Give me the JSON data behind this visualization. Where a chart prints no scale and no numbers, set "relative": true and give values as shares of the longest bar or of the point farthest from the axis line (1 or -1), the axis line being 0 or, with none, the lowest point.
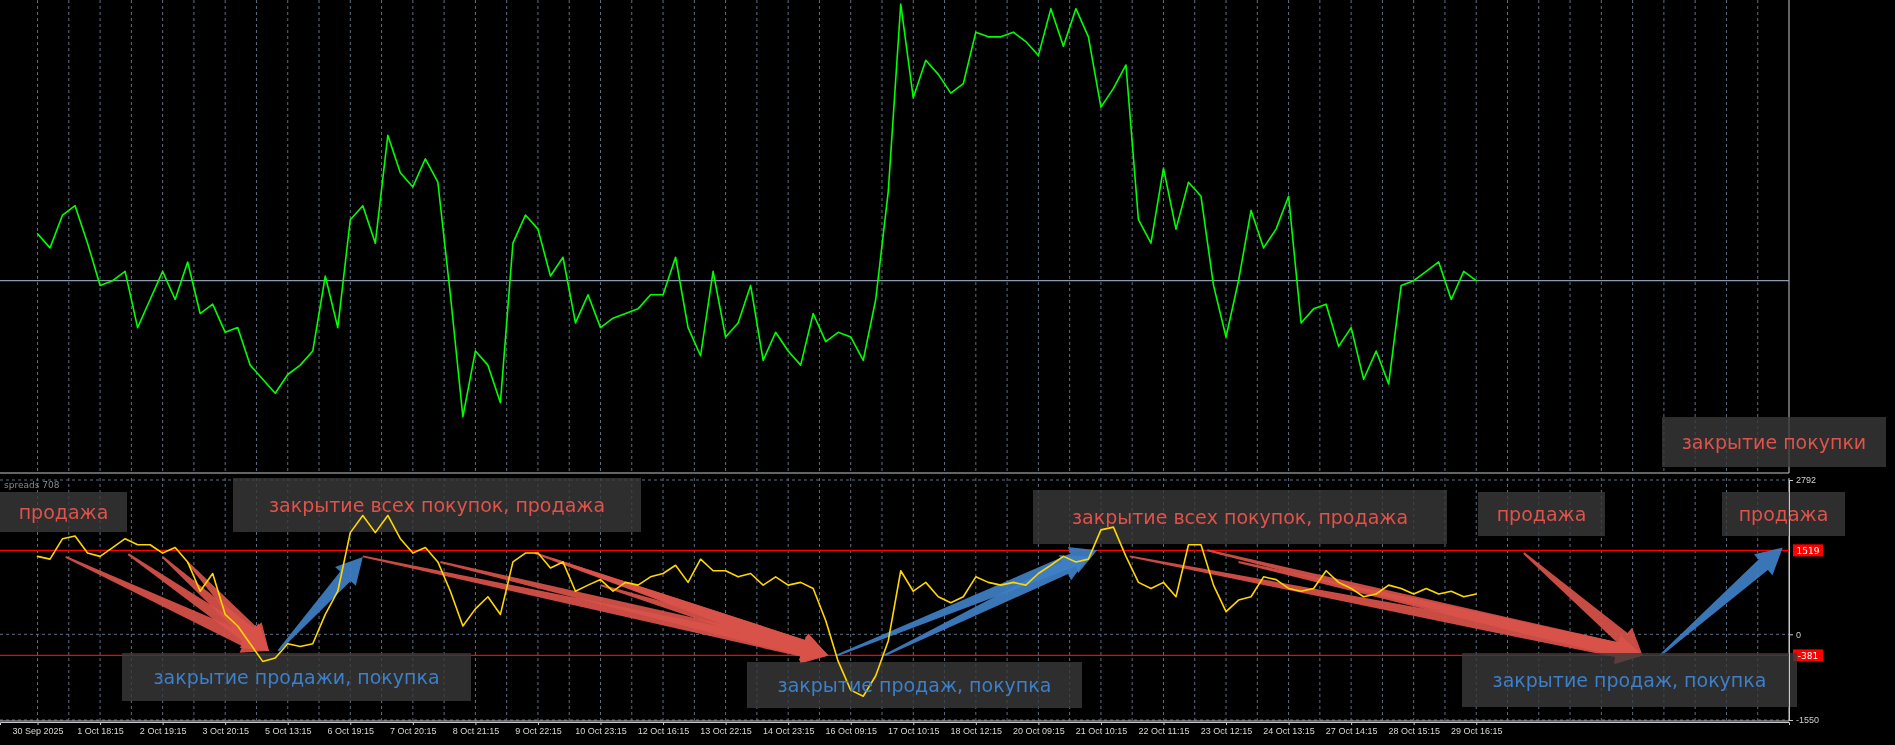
{
  "chart_data": [
    {
      "type": "line",
      "relative": true,
      "color": "#00ff00",
      "tick_labels": false,
      "grid": "x",
      "categories": [
        null,
        null,
        null,
        null,
        null,
        null,
        null,
        null,
        null,
        null,
        null,
        null,
        null,
        null,
        null,
        null,
        null,
        null,
        null,
        null,
        null,
        null,
        null,
        null,
        null,
        null,
        null,
        null,
        null,
        null,
        null,
        null,
        null,
        null,
        null,
        null,
        null,
        null,
        null,
        null,
        null,
        null,
        null,
        null,
        null,
        null,
        null,
        null,
        null,
        null,
        null,
        null,
        null,
        null,
        null,
        null,
        null,
        null,
        null,
        null,
        null,
        null,
        null,
        null,
        null,
        null,
        null,
        null,
        null,
        null,
        null,
        null,
        null,
        null,
        null,
        null,
        null,
        null,
        null,
        null,
        null,
        null,
        null,
        null,
        null,
        null,
        null,
        null,
        null,
        null,
        null,
        null,
        null,
        null,
        null,
        null,
        null,
        null,
        null,
        null,
        null,
        null,
        null,
        null,
        null,
        null,
        null,
        null,
        null,
        null,
        null,
        null,
        null,
        null,
        null,
        null,
        null,
        null,
        null,
        null,
        null,
        null,
        null,
        null,
        null,
        null,
        null,
        null,
        null,
        null,
        null,
        null,
        null,
        null,
        null,
        null,
        null,
        null,
        null,
        null
      ],
      "values": [
        0.51,
        0.48,
        0.55,
        0.57,
        0.49,
        0.4,
        0.41,
        0.43,
        0.31,
        0.37,
        0.43,
        0.37,
        0.45,
        0.34,
        0.36,
        0.3,
        0.31,
        0.23,
        0.2,
        0.17,
        0.21,
        0.23,
        0.26,
        0.42,
        0.31,
        0.54,
        0.57,
        0.49,
        0.72,
        0.64,
        0.61,
        0.67,
        0.62,
        0.38,
        0.12,
        0.26,
        0.23,
        0.15,
        0.49,
        0.55,
        0.52,
        0.42,
        0.46,
        0.32,
        0.38,
        0.31,
        0.33,
        0.34,
        0.35,
        0.38,
        0.38,
        0.46,
        0.31,
        0.25,
        0.43,
        0.29,
        0.32,
        0.4,
        0.24,
        0.3,
        0.26,
        0.23,
        0.34,
        0.28,
        0.3,
        0.29,
        0.24,
        0.37,
        0.6,
        1.0,
        0.8,
        0.88,
        0.85,
        0.81,
        0.83,
        0.94,
        0.93,
        0.93,
        0.94,
        0.92,
        0.89,
        0.99,
        0.91,
        0.99,
        0.93,
        0.78,
        0.82,
        0.87,
        0.54,
        0.49,
        0.65,
        0.52,
        0.62,
        0.59,
        0.4,
        0.29,
        0.41,
        0.56,
        0.48,
        0.52,
        0.59,
        0.32,
        0.35,
        0.36,
        0.27,
        0.31,
        0.2,
        0.26,
        0.19,
        0.4,
        0.41,
        0.43,
        0.45,
        0.37,
        0.43,
        0.41,
        null,
        null,
        null,
        null,
        null,
        null,
        null,
        null,
        null,
        null,
        null,
        null,
        null,
        null,
        null,
        null,
        null,
        null,
        null,
        null,
        null,
        null,
        null,
        null
      ],
      "ref_lines": [
        {
          "axis": "y",
          "value": 0.41,
          "color": "#8b9bb0"
        }
      ],
      "annotations": [
        "закрытие покупки"
      ]
    },
    {
      "type": "line",
      "title": "spreads 708",
      "color": "#ffd700",
      "ylim": [
        -1550,
        2792
      ],
      "yticks": [
        2792,
        0,
        -1550
      ],
      "grid": true,
      "categories": [
        "30 Sep 2025",
        null,
        null,
        null,
        null,
        "1 Oct 18:15",
        null,
        null,
        null,
        null,
        "2 Oct 19:15",
        null,
        null,
        null,
        null,
        "3 Oct 20:15",
        null,
        null,
        null,
        null,
        "5 Oct 13:15",
        null,
        null,
        null,
        null,
        "6 Oct 19:15",
        null,
        null,
        null,
        null,
        "7 Oct 20:15",
        null,
        null,
        null,
        null,
        "8 Oct 21:15",
        null,
        null,
        null,
        null,
        "9 Oct 22:15",
        null,
        null,
        null,
        null,
        "10 Oct 23:15",
        null,
        null,
        null,
        null,
        "12 Oct 16:15",
        null,
        null,
        null,
        null,
        "13 Oct 22:15",
        null,
        null,
        null,
        null,
        "14 Oct 23:15",
        null,
        null,
        null,
        null,
        "16 Oct 09:15",
        null,
        null,
        null,
        null,
        "17 Oct 10:15",
        null,
        null,
        null,
        null,
        "18 Oct 12:15",
        null,
        null,
        null,
        null,
        "20 Oct 09:15",
        null,
        null,
        null,
        null,
        "21 Oct 10:15",
        null,
        null,
        null,
        null,
        "22 Oct 11:15",
        null,
        null,
        null,
        null,
        "23 Oct 12:15",
        null,
        null,
        null,
        null,
        "24 Oct 13:15",
        null,
        null,
        null,
        null,
        "27 Oct 14:15",
        null,
        null,
        null,
        null,
        "28 Oct 15:15",
        null,
        null,
        null,
        null,
        "29 Oct 16:15",
        null,
        null,
        null,
        null,
        null,
        null,
        null,
        null,
        null,
        null,
        null,
        null,
        null,
        null,
        null,
        null,
        null,
        null,
        null,
        null,
        null,
        null,
        null,
        null
      ],
      "values": [
        1410,
        1360,
        1730,
        1780,
        1470,
        1410,
        1570,
        1730,
        1620,
        1620,
        1470,
        1570,
        1310,
        780,
        1100,
        360,
        150,
        -170,
        -490,
        -430,
        -170,
        -220,
        -170,
        360,
        780,
        1840,
        2150,
        1840,
        2150,
        1730,
        1470,
        1570,
        1310,
        780,
        150,
        460,
        680,
        360,
        1310,
        1470,
        1470,
        1200,
        1310,
        780,
        890,
        990,
        780,
        940,
        890,
        1040,
        1100,
        1250,
        940,
        1360,
        1150,
        1150,
        1040,
        1100,
        890,
        1040,
        890,
        940,
        830,
        250,
        -490,
        -1010,
        -1120,
        -750,
        -120,
        1150,
        780,
        940,
        680,
        570,
        680,
        1040,
        940,
        890,
        940,
        890,
        1100,
        1250,
        1410,
        1310,
        1360,
        1890,
        1940,
        1410,
        940,
        830,
        940,
        680,
        1620,
        1620,
        890,
        410,
        620,
        680,
        1040,
        990,
        830,
        780,
        830,
        1150,
        940,
        830,
        680,
        730,
        890,
        830,
        730,
        830,
        730,
        780,
        680,
        730,
        null,
        null,
        null,
        null,
        null,
        null,
        null,
        null,
        null,
        null,
        null,
        null,
        null,
        null,
        null,
        null,
        null,
        null,
        null,
        null,
        null,
        null,
        null,
        null
      ],
      "ref_lines": [
        {
          "axis": "y",
          "value": 1519,
          "label": "1519",
          "color": "#ff0000"
        },
        {
          "axis": "y",
          "value": -381,
          "label": "-381",
          "color": "#ff0000"
        }
      ],
      "annotations": [
        "продажа",
        "закрытие всех покупок, продажа",
        {
          "text": "закрытие продажи, покупка",
          "y": -300
        },
        {
          "text": "закрытие продаж, покупка",
          "y": -381
        },
        {
          "text": "закрытие всех покупок, продажа",
          "y": 1519
        },
        "продажа",
        "продажа",
        {
          "text": "закрытие продаж, покупка",
          "y": -381
        }
      ]
    }
  ]
}
